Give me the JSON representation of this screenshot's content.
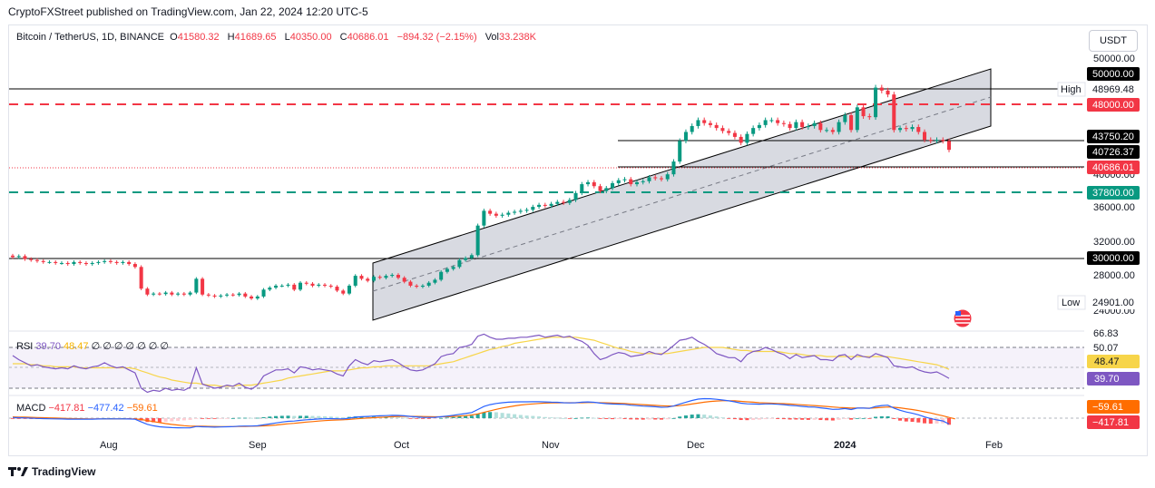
{
  "header": {
    "publisher_line": "CryptoFXStreet published on TradingView.com, Jan 22, 2024 12:20 UTC-5"
  },
  "legend": {
    "symbol": "Bitcoin / TetherUS, 1D, BINANCE",
    "o_label": "O",
    "o_value": "41580.32",
    "h_label": "H",
    "h_value": "41689.65",
    "l_label": "L",
    "l_value": "40350.00",
    "c_label": "C",
    "c_value": "40686.01",
    "change": "−894.32 (−2.15%)",
    "vol_label": "Vol",
    "vol_value": "33.238K"
  },
  "currency_button": "USDT",
  "price_axis": {
    "ticks": [
      "50000.00",
      "40000.00",
      "36000.00",
      "32000.00",
      "28000.00",
      "24000.00"
    ],
    "tags": [
      {
        "text": "50000.00",
        "bg": "#000000",
        "fg": "#ffffff"
      },
      {
        "text": "48969.48",
        "bg": "#ffffff",
        "fg": "#131722"
      },
      {
        "text": "48000.00",
        "bg": "#f23645",
        "fg": "#ffffff"
      },
      {
        "text": "43750.20",
        "bg": "#000000",
        "fg": "#ffffff"
      },
      {
        "text": "40726.37",
        "bg": "#000000",
        "fg": "#ffffff"
      },
      {
        "text": "40686.01",
        "bg": "#f23645",
        "fg": "#ffffff"
      },
      {
        "text": "37800.00",
        "bg": "#089981",
        "fg": "#ffffff"
      },
      {
        "text": "30000.00",
        "bg": "#000000",
        "fg": "#ffffff"
      },
      {
        "text": "24901.00",
        "bg": "#ffffff",
        "fg": "#131722"
      }
    ],
    "high_label": "High",
    "low_label": "Low"
  },
  "time_axis": [
    "Aug",
    "Sep",
    "Oct",
    "Nov",
    "Dec",
    "2024",
    "Feb"
  ],
  "rsi": {
    "label": "RSI",
    "value1": "39.70",
    "value2": "48.47",
    "zeros": "∅ ∅ ∅ ∅ ∅ ∅ ∅",
    "axis_ticks": [
      "66.83",
      "50.07"
    ],
    "tag_ma": "48.47",
    "tag_rsi": "39.70"
  },
  "macd": {
    "label": "MACD",
    "hist": "−417.81",
    "macd": "−477.42",
    "signal": "−59.61",
    "tag_signal": "−59.61",
    "tag_hist": "−417.81"
  },
  "footer": {
    "brand": "TradingView"
  },
  "colors": {
    "up": "#089981",
    "down": "#f23645",
    "black": "#000000",
    "rsi": "#7e57c2",
    "rsi_ma": "#f7d54a",
    "macd": "#2962ff",
    "signal": "#ff6d00"
  },
  "chart_data": {
    "type": "candlestick",
    "title": "Bitcoin / TetherUS, 1D, BINANCE",
    "xlabel": "",
    "ylabel": "USDT",
    "ylim": [
      23000,
      51000
    ],
    "date_range": [
      "2023-07-20",
      "2024-01-22"
    ],
    "horizontal_levels": [
      {
        "value": 48969.48,
        "label": "High",
        "style": "solid"
      },
      {
        "value": 48000,
        "style": "dashed-red"
      },
      {
        "value": 43750.2,
        "style": "solid"
      },
      {
        "value": 40726.37,
        "style": "solid"
      },
      {
        "value": 37800,
        "style": "dashed-green"
      },
      {
        "value": 30000,
        "style": "solid"
      },
      {
        "value": 24901,
        "label": "Low"
      }
    ],
    "channel": {
      "start_date": "2023-10-01",
      "end_date": "2024-02-01",
      "lower_start": 23300,
      "lower_end": 44000,
      "upper_start": 29700,
      "upper_end": 50500
    },
    "close_series": [
      29800,
      29900,
      29600,
      29500,
      29400,
      29300,
      29300,
      29200,
      29200,
      29100,
      29300,
      29200,
      29100,
      29200,
      29300,
      29400,
      29300,
      29200,
      29300,
      29100,
      28800,
      26600,
      26000,
      26100,
      26050,
      26200,
      26000,
      26100,
      26000,
      26200,
      27600,
      26000,
      25900,
      25800,
      25900,
      26000,
      25950,
      26100,
      25800,
      25600,
      25800,
      26500,
      26700,
      26900,
      26900,
      27000,
      26500,
      27200,
      27100,
      26900,
      27000,
      26900,
      26800,
      26400,
      26100,
      26900,
      27900,
      27600,
      27400,
      27800,
      27700,
      27900,
      28000,
      27700,
      27300,
      26900,
      26800,
      26900,
      27200,
      27500,
      28300,
      28600,
      28800,
      29500,
      29700,
      30000,
      33000,
      34500,
      34200,
      34000,
      34100,
      34300,
      34400,
      34500,
      34600,
      34900,
      35100,
      35000,
      35200,
      35400,
      35300,
      35600,
      36300,
      37200,
      37400,
      37000,
      36500,
      36800,
      37300,
      37600,
      37700,
      37200,
      37400,
      37500,
      37900,
      37800,
      37700,
      38200,
      39500,
      41600,
      42500,
      43100,
      43700,
      43400,
      43200,
      42900,
      42600,
      42400,
      42000,
      41400,
      42300,
      42900,
      43200,
      43700,
      43700,
      43400,
      43300,
      42900,
      43500,
      43000,
      43100,
      43400,
      42700,
      42700,
      42500,
      43500,
      44200,
      42700,
      45000,
      44100,
      44000,
      47000,
      46700,
      46300,
      42700,
      42900,
      42800,
      43000,
      42500,
      41700,
      41600,
      41700,
      41580,
      40686
    ],
    "rsi_range": [
      30,
      80
    ],
    "rsi_series": [
      62,
      58,
      55,
      52,
      53,
      51,
      50,
      49,
      50,
      49,
      52,
      50,
      49,
      51,
      52,
      55,
      52,
      50,
      51,
      48,
      45,
      30,
      26,
      28,
      27,
      30,
      28,
      29,
      28,
      31,
      50,
      34,
      32,
      30,
      31,
      33,
      32,
      35,
      31,
      29,
      33,
      42,
      45,
      48,
      48,
      49,
      45,
      51,
      50,
      48,
      49,
      48,
      47,
      44,
      42,
      52,
      58,
      55,
      53,
      57,
      56,
      57,
      58,
      55,
      51,
      48,
      47,
      48,
      51,
      54,
      61,
      63,
      64,
      70,
      71,
      73,
      81,
      83,
      80,
      78,
      78,
      79,
      79,
      80,
      80,
      81,
      82,
      80,
      81,
      82,
      80,
      81,
      78,
      76,
      72,
      64,
      58,
      60,
      63,
      65,
      64,
      61,
      62,
      63,
      66,
      64,
      63,
      67,
      72,
      77,
      78,
      80,
      76,
      73,
      69,
      64,
      62,
      60,
      60,
      56,
      63,
      66,
      67,
      70,
      68,
      65,
      63,
      59,
      63,
      60,
      61,
      62,
      58,
      58,
      57,
      62,
      63,
      58,
      63,
      61,
      60,
      64,
      62,
      60,
      52,
      51,
      50,
      51,
      48,
      46,
      45,
      46,
      43,
      39.7
    ],
    "rsi_ma_series": [
      54,
      54,
      54,
      53,
      53,
      52,
      52,
      51,
      51,
      51,
      51,
      50,
      50,
      50,
      50,
      50,
      50,
      50,
      50,
      50,
      49,
      47,
      45,
      43,
      41,
      40,
      38,
      37,
      36,
      35,
      35,
      34,
      33,
      33,
      32,
      32,
      32,
      33,
      33,
      33,
      34,
      35,
      36,
      37,
      38,
      40,
      41,
      42,
      43,
      44,
      45,
      46,
      47,
      47,
      47,
      48,
      49,
      50,
      50,
      51,
      51,
      52,
      52,
      52,
      52,
      52,
      52,
      52,
      52,
      53,
      54,
      55,
      56,
      58,
      60,
      62,
      64,
      66,
      68,
      69,
      71,
      72,
      74,
      75,
      76,
      77,
      78,
      79,
      80,
      80,
      80,
      80,
      80,
      79,
      78,
      77,
      75,
      73,
      71,
      69,
      68,
      66,
      65,
      64,
      64,
      64,
      64,
      64,
      65,
      66,
      67,
      68,
      69,
      70,
      70,
      70,
      70,
      69,
      68,
      67,
      67,
      66,
      66,
      66,
      66,
      66,
      65,
      64,
      64,
      63,
      62,
      62,
      62,
      61,
      61,
      61,
      61,
      61,
      61,
      61,
      61,
      61,
      61,
      61,
      60,
      59,
      58,
      57,
      56,
      55,
      54,
      53,
      51,
      48.47
    ],
    "macd_range": [
      -1500,
      1700
    ],
    "macd_series": [
      50,
      40,
      20,
      0,
      -20,
      -40,
      -50,
      -60,
      -70,
      -80,
      -80,
      -80,
      -80,
      -80,
      -70,
      -60,
      -60,
      -60,
      -60,
      -70,
      -90,
      -300,
      -500,
      -620,
      -700,
      -740,
      -770,
      -780,
      -790,
      -790,
      -680,
      -700,
      -720,
      -730,
      -720,
      -700,
      -690,
      -650,
      -640,
      -640,
      -620,
      -550,
      -470,
      -390,
      -320,
      -260,
      -240,
      -180,
      -130,
      -100,
      -70,
      -50,
      -40,
      -50,
      -60,
      0,
      80,
      120,
      140,
      170,
      190,
      210,
      230,
      220,
      190,
      140,
      100,
      70,
      60,
      70,
      120,
      170,
      230,
      310,
      380,
      460,
      700,
      950,
      1100,
      1200,
      1260,
      1300,
      1320,
      1330,
      1330,
      1340,
      1340,
      1320,
      1300,
      1290,
      1260,
      1240,
      1260,
      1300,
      1320,
      1290,
      1230,
      1180,
      1150,
      1140,
      1120,
      1060,
      1020,
      980,
      960,
      930,
      890,
      900,
      990,
      1150,
      1300,
      1440,
      1550,
      1590,
      1580,
      1540,
      1480,
      1410,
      1330,
      1220,
      1170,
      1150,
      1140,
      1160,
      1160,
      1130,
      1100,
      1040,
      1010,
      960,
      920,
      900,
      840,
      780,
      720,
      730,
      780,
      700,
      820,
      820,
      800,
      950,
      1030,
      1060,
      820,
      640,
      500,
      400,
      270,
      100,
      -30,
      -140,
      -230,
      -477
    ],
    "signal_series": [
      100,
      90,
      80,
      65,
      50,
      35,
      20,
      5,
      -10,
      -25,
      -35,
      -45,
      -55,
      -60,
      -62,
      -62,
      -62,
      -61,
      -61,
      -62,
      -68,
      -110,
      -190,
      -280,
      -360,
      -440,
      -510,
      -560,
      -610,
      -650,
      -650,
      -660,
      -670,
      -680,
      -690,
      -690,
      -690,
      -680,
      -670,
      -660,
      -650,
      -630,
      -600,
      -560,
      -510,
      -460,
      -420,
      -370,
      -320,
      -280,
      -240,
      -200,
      -170,
      -150,
      -130,
      -100,
      -60,
      -20,
      10,
      40,
      70,
      90,
      120,
      140,
      150,
      150,
      140,
      130,
      120,
      110,
      110,
      120,
      140,
      170,
      210,
      260,
      350,
      470,
      600,
      720,
      830,
      920,
      1000,
      1070,
      1120,
      1160,
      1200,
      1230,
      1240,
      1250,
      1260,
      1260,
      1260,
      1260,
      1270,
      1270,
      1260,
      1250,
      1230,
      1210,
      1190,
      1160,
      1130,
      1100,
      1070,
      1040,
      1010,
      990,
      990,
      1020,
      1080,
      1150,
      1230,
      1300,
      1360,
      1400,
      1420,
      1420,
      1410,
      1370,
      1330,
      1300,
      1260,
      1240,
      1220,
      1200,
      1180,
      1150,
      1120,
      1090,
      1060,
      1030,
      990,
      950,
      910,
      870,
      850,
      820,
      820,
      820,
      810,
      840,
      880,
      910,
      890,
      840,
      770,
      700,
      620,
      520,
      420,
      300,
      190,
      60,
      -59.61
    ]
  }
}
